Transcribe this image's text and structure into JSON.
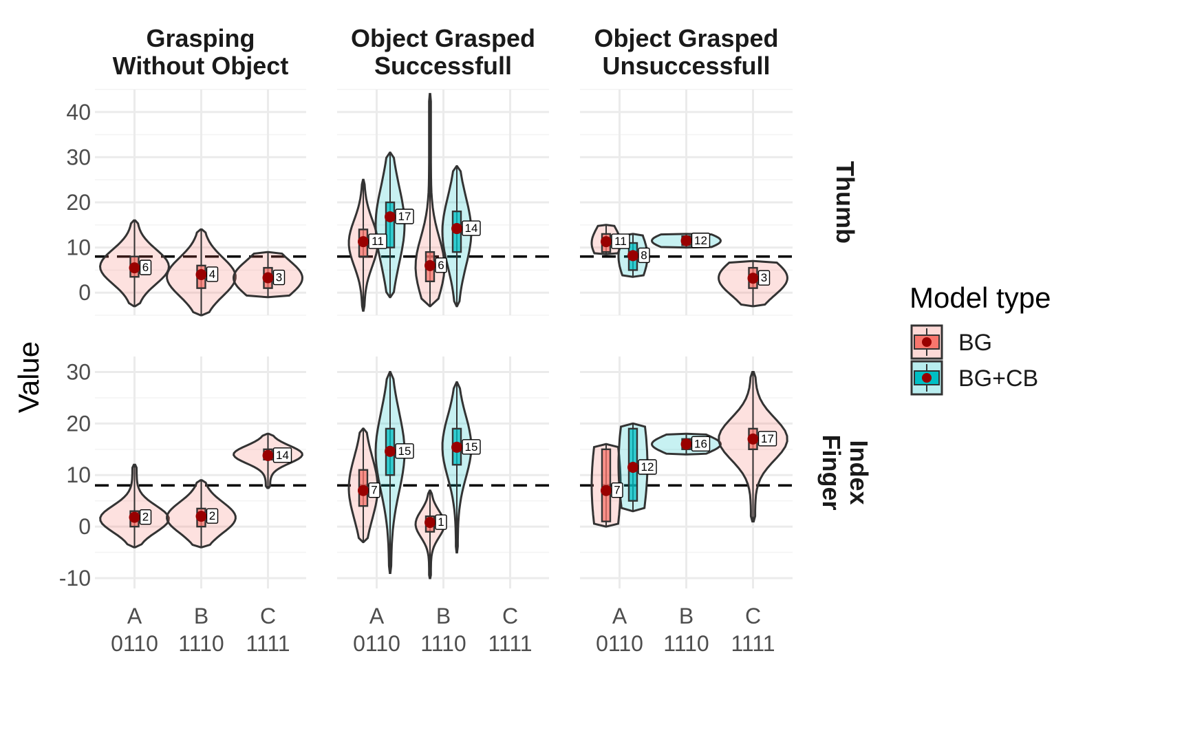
{
  "chart_data": {
    "type": "violin",
    "ylabel": "Value",
    "reference_line": 8,
    "columns": [
      {
        "id": "col1",
        "title_lines": [
          "Grasping",
          "Without Object"
        ]
      },
      {
        "id": "col2",
        "title_lines": [
          "Object Grasped",
          "Successfull"
        ]
      },
      {
        "id": "col3",
        "title_lines": [
          "Object Grasped",
          "Unsuccessfull"
        ]
      }
    ],
    "rows": [
      {
        "id": "thumb",
        "label_lines": [
          "Thumb"
        ],
        "ylim": [
          -5,
          45
        ],
        "ticks": [
          0,
          10,
          20,
          30,
          40
        ]
      },
      {
        "id": "index",
        "label_lines": [
          "Index",
          "Finger"
        ],
        "ylim": [
          -12,
          33
        ],
        "ticks": [
          -10,
          0,
          10,
          20,
          30
        ]
      }
    ],
    "categories": [
      {
        "letter": "A",
        "code": "0110"
      },
      {
        "letter": "B",
        "code": "1110"
      },
      {
        "letter": "C",
        "code": "1111"
      }
    ],
    "legend": {
      "title": "Model type",
      "items": [
        {
          "name": "BG",
          "fill": "#f8766d"
        },
        {
          "name": "BG+CB",
          "fill": "#00bfc4"
        }
      ]
    },
    "groups": [
      {
        "row": "thumb",
        "col": "col1",
        "category": "A",
        "model": "BG",
        "mean": 5.5,
        "label": "6",
        "min": -3,
        "max": 16,
        "q1": 3.5,
        "q3": 8
      },
      {
        "row": "thumb",
        "col": "col1",
        "category": "B",
        "model": "BG",
        "mean": 4,
        "label": "4",
        "min": -5,
        "max": 14,
        "q1": 1,
        "q3": 6
      },
      {
        "row": "thumb",
        "col": "col1",
        "category": "C",
        "model": "BG",
        "mean": 3.3,
        "label": "3",
        "min": -1,
        "max": 9,
        "q1": 1,
        "q3": 5.5
      },
      {
        "row": "thumb",
        "col": "col2",
        "category": "A",
        "model": "BG",
        "mean": 11.3,
        "label": "11",
        "min": -4,
        "max": 25,
        "q1": 8,
        "q3": 14
      },
      {
        "row": "thumb",
        "col": "col2",
        "category": "A",
        "model": "BG+CB",
        "mean": 16.8,
        "label": "17",
        "min": -1,
        "max": 31,
        "q1": 10,
        "q3": 20
      },
      {
        "row": "thumb",
        "col": "col2",
        "category": "B",
        "model": "BG",
        "mean": 6,
        "label": "6",
        "min": -3,
        "max": 44,
        "q1": 2.5,
        "q3": 9
      },
      {
        "row": "thumb",
        "col": "col2",
        "category": "B",
        "model": "BG+CB",
        "mean": 14.2,
        "label": "14",
        "min": -3,
        "max": 28,
        "q1": 9,
        "q3": 18
      },
      {
        "row": "thumb",
        "col": "col3",
        "category": "A",
        "model": "BG",
        "mean": 11.3,
        "label": "11",
        "min": 8.5,
        "max": 15,
        "q1": 9,
        "q3": 13
      },
      {
        "row": "thumb",
        "col": "col3",
        "category": "A",
        "model": "BG+CB",
        "mean": 8.2,
        "label": "8",
        "min": 3.5,
        "max": 13,
        "q1": 5,
        "q3": 11
      },
      {
        "row": "thumb",
        "col": "col3",
        "category": "B",
        "model": "BG+CB",
        "mean": 11.5,
        "label": "12",
        "min": 10,
        "max": 13,
        "q1": 10.5,
        "q3": 12.5
      },
      {
        "row": "thumb",
        "col": "col3",
        "category": "C",
        "model": "BG",
        "mean": 3.2,
        "label": "3",
        "min": -3,
        "max": 7,
        "q1": 1,
        "q3": 5.5
      },
      {
        "row": "index",
        "col": "col1",
        "category": "A",
        "model": "BG",
        "mean": 1.8,
        "label": "2",
        "min": -4,
        "max": 12,
        "q1": 0,
        "q3": 3
      },
      {
        "row": "index",
        "col": "col1",
        "category": "B",
        "model": "BG",
        "mean": 2,
        "label": "2",
        "min": -4,
        "max": 9,
        "q1": 0,
        "q3": 3.5
      },
      {
        "row": "index",
        "col": "col1",
        "category": "C",
        "model": "BG",
        "mean": 13.8,
        "label": "14",
        "min": 7.5,
        "max": 18,
        "q1": 13,
        "q3": 15
      },
      {
        "row": "index",
        "col": "col2",
        "category": "A",
        "model": "BG",
        "mean": 7,
        "label": "7",
        "min": -3,
        "max": 19,
        "q1": 4,
        "q3": 11
      },
      {
        "row": "index",
        "col": "col2",
        "category": "A",
        "model": "BG+CB",
        "mean": 14.6,
        "label": "15",
        "min": -9,
        "max": 30,
        "q1": 10,
        "q3": 19
      },
      {
        "row": "index",
        "col": "col2",
        "category": "B",
        "model": "BG",
        "mean": 0.8,
        "label": "1",
        "min": -10,
        "max": 7,
        "q1": -1,
        "q3": 2
      },
      {
        "row": "index",
        "col": "col2",
        "category": "B",
        "model": "BG+CB",
        "mean": 15.4,
        "label": "15",
        "min": -5,
        "max": 28,
        "q1": 12,
        "q3": 19
      },
      {
        "row": "index",
        "col": "col3",
        "category": "A",
        "model": "BG",
        "mean": 7,
        "label": "7",
        "min": 0,
        "max": 16,
        "q1": 1,
        "q3": 15
      },
      {
        "row": "index",
        "col": "col3",
        "category": "A",
        "model": "BG+CB",
        "mean": 11.5,
        "label": "12",
        "min": 3,
        "max": 20,
        "q1": 5,
        "q3": 19
      },
      {
        "row": "index",
        "col": "col3",
        "category": "B",
        "model": "BG+CB",
        "mean": 16,
        "label": "16",
        "min": 14,
        "max": 18,
        "q1": 15,
        "q3": 17
      },
      {
        "row": "index",
        "col": "col3",
        "category": "C",
        "model": "BG",
        "mean": 17,
        "label": "17",
        "min": 1,
        "max": 30,
        "q1": 15,
        "q3": 19
      }
    ]
  }
}
